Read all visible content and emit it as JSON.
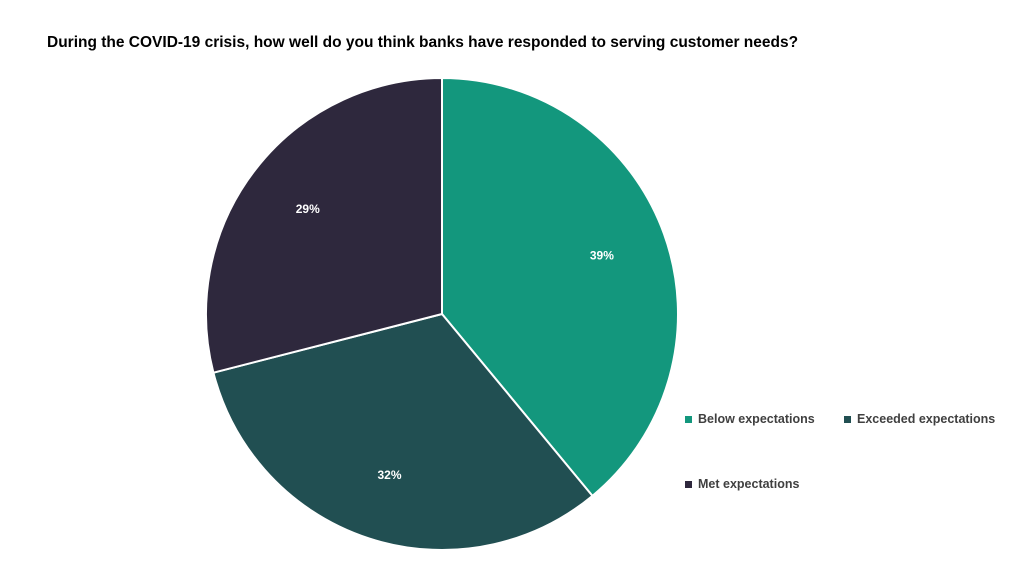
{
  "chart_data": {
    "type": "pie",
    "title": "During the COVID-19 crisis, how well do you think banks have responded to serving customer needs?",
    "slices": [
      {
        "label": "Below expectations",
        "value": 39,
        "display": "39%",
        "color": "#13977d"
      },
      {
        "label": "Exceeded expectations",
        "value": 32,
        "display": "32%",
        "color": "#214f52"
      },
      {
        "label": "Met expectations",
        "value": 29,
        "display": "29%",
        "color": "#2e283d"
      }
    ],
    "start_angle": "12 o'clock",
    "direction": "clockwise",
    "legend_position": "bottom-right"
  }
}
